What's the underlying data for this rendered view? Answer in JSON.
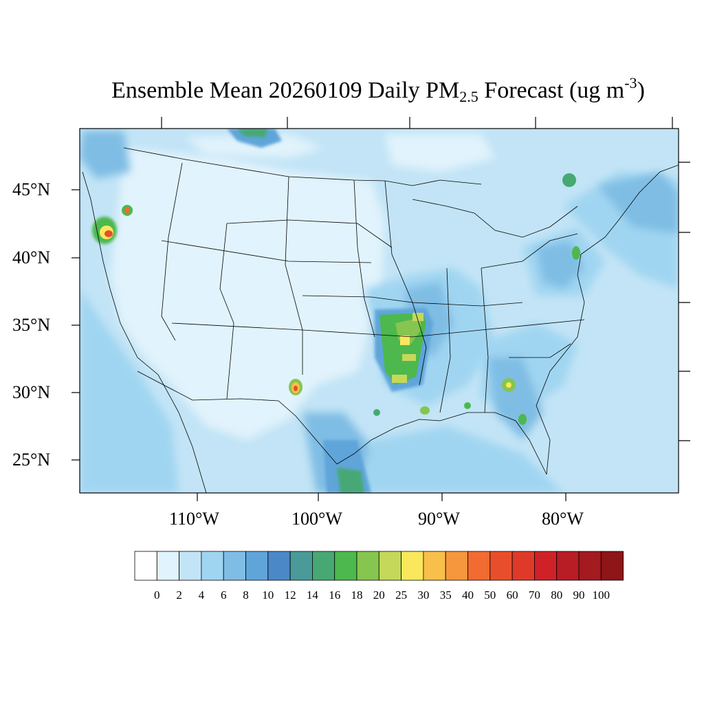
{
  "title": {
    "prefix": "Ensemble Mean 20260109 Daily PM",
    "subscript": "2.5",
    "middle": " Forecast (ug m",
    "superscript": "-3",
    "suffix": ")"
  },
  "map": {
    "lat_labels": [
      "45°N",
      "40°N",
      "35°N",
      "30°N",
      "25°N"
    ],
    "lon_labels": [
      "110°W",
      "100°W",
      "90°W",
      "80°W"
    ],
    "background_color": "#c2e4f6"
  },
  "colorbar": {
    "levels": [
      "0",
      "2",
      "4",
      "6",
      "8",
      "10",
      "12",
      "14",
      "16",
      "18",
      "20",
      "25",
      "30",
      "35",
      "40",
      "50",
      "60",
      "70",
      "80",
      "90",
      "100"
    ],
    "colors": [
      "#ffffff",
      "#e1f3fc",
      "#c2e4f6",
      "#a0d5f1",
      "#7fbde4",
      "#5fa5d9",
      "#4b88c7",
      "#4a9a9a",
      "#47a874",
      "#4db84d",
      "#86c54f",
      "#c5d85a",
      "#f9e85c",
      "#f8bf4a",
      "#f6963d",
      "#f26b30",
      "#e84e2b",
      "#df3a29",
      "#d02128",
      "#b81c24",
      "#a31a1f",
      "#8e1518"
    ]
  }
}
